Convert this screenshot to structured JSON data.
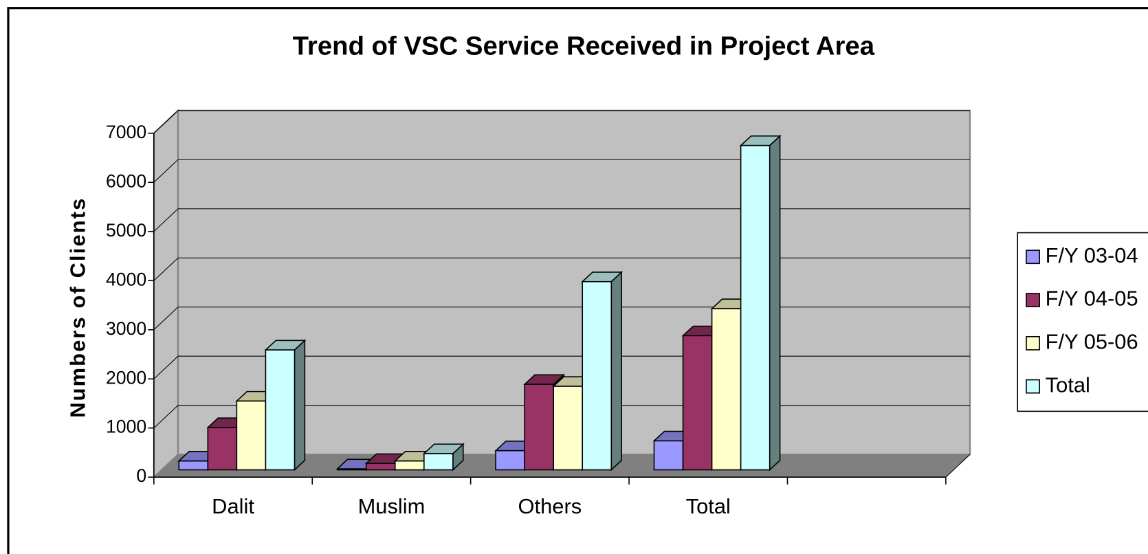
{
  "chart_data": {
    "type": "bar3d",
    "title": "Trend of VSC Service Received in Project Area",
    "y_label": "Numbers of Clients",
    "categories": [
      "Dalit",
      "Muslim",
      "Others",
      "Total",
      null
    ],
    "series": [
      {
        "name": "F/Y 03-04",
        "color": "#9999ff",
        "values": [
          180,
          20,
          390,
          590,
          null
        ]
      },
      {
        "name": "F/Y 04-05",
        "color": "#993366",
        "values": [
          860,
          130,
          1740,
          2730,
          null
        ]
      },
      {
        "name": "F/Y 05-06",
        "color": "#ffffcc",
        "values": [
          1400,
          180,
          1700,
          3280,
          null
        ]
      },
      {
        "name": "Total",
        "color": "#ccffff",
        "values": [
          2440,
          330,
          3830,
          6600,
          null
        ]
      }
    ],
    "ylim": [
      0,
      7000
    ],
    "yticks": [
      0,
      1000,
      2000,
      3000,
      4000,
      5000,
      6000,
      7000
    ],
    "grid": true,
    "legend": "right"
  }
}
